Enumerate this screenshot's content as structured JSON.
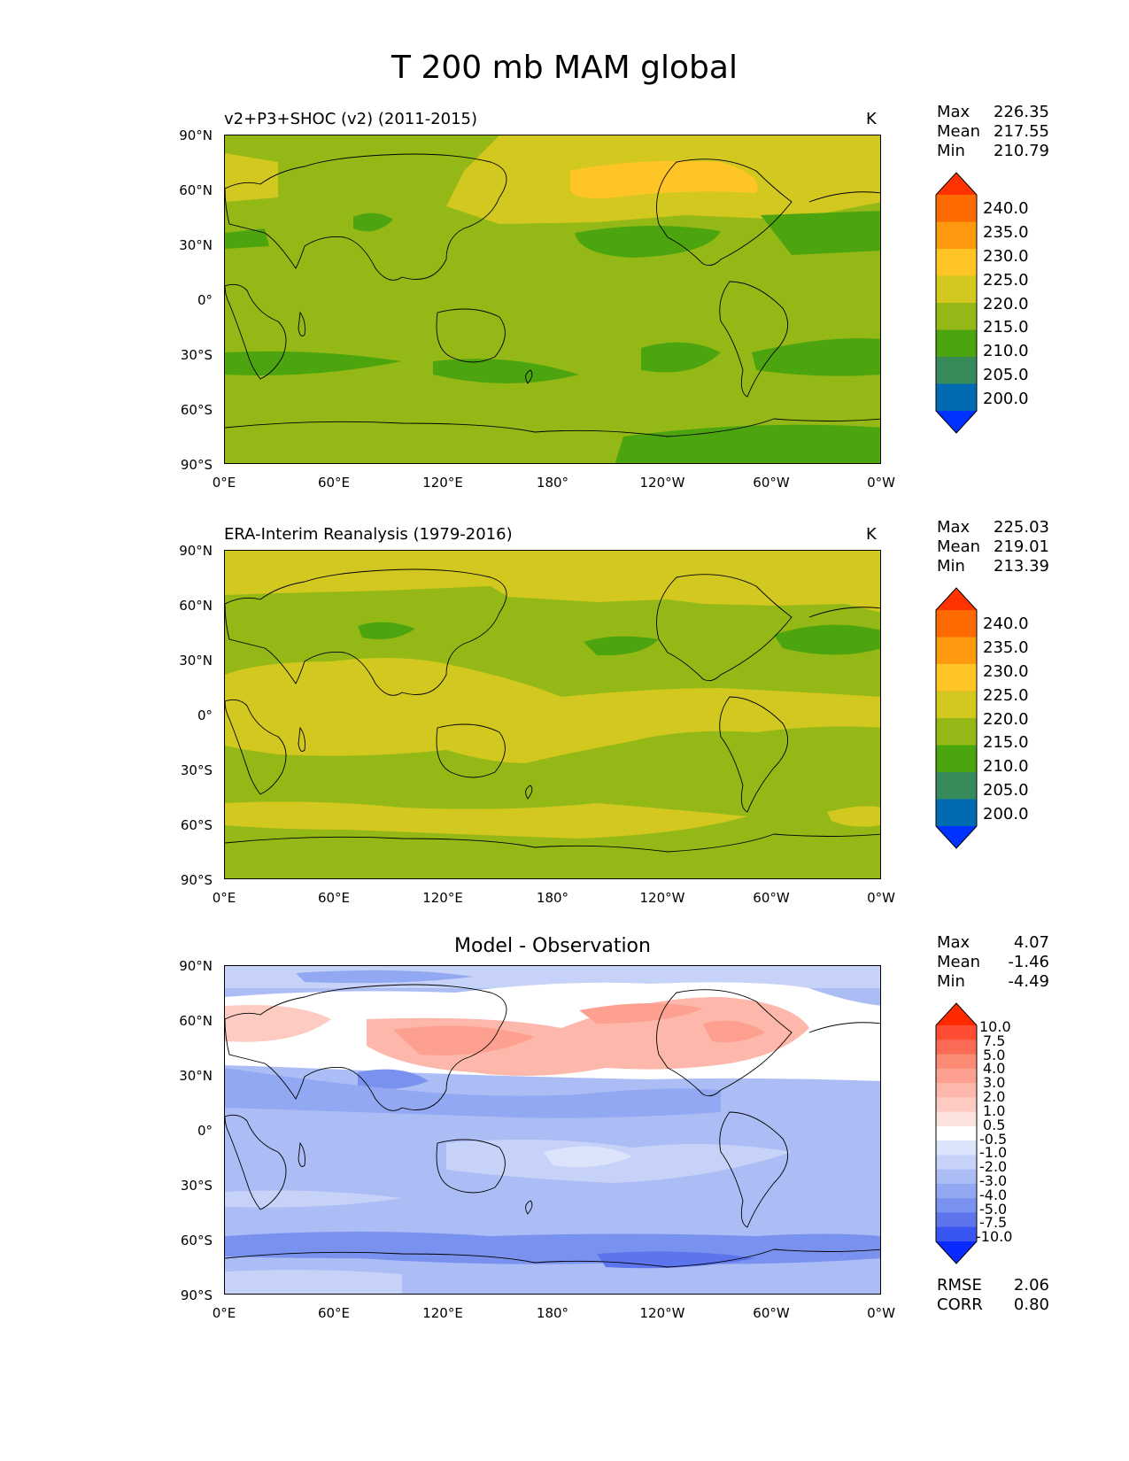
{
  "title": "T 200 mb MAM global",
  "x_ticks": [
    "0°E",
    "60°E",
    "120°E",
    "180°",
    "120°W",
    "60°W",
    "0°W"
  ],
  "y_ticks": [
    "90°N",
    "60°N",
    "30°N",
    "0°",
    "30°S",
    "60°S",
    "90°S"
  ],
  "panels": [
    {
      "id": "model",
      "title": "v2+P3+SHOC (v2) (2011-2015)",
      "units": "K",
      "stats": [
        {
          "label": "Max",
          "value": "226.35"
        },
        {
          "label": "Mean",
          "value": "217.55"
        },
        {
          "label": "Min",
          "value": "210.79"
        }
      ],
      "colorbar": {
        "labels": [
          "240.0",
          "235.0",
          "230.0",
          "225.0",
          "220.0",
          "215.0",
          "210.0",
          "205.0",
          "200.0"
        ],
        "colors": [
          "#ff3300",
          "#ff6a00",
          "#ff9a10",
          "#ffc526",
          "#d2c81f",
          "#94b916",
          "#4ca50f",
          "#378a5a",
          "#006bb0",
          "#0032ff"
        ]
      }
    },
    {
      "id": "obs",
      "title": "ERA-Interim Reanalysis (1979-2016)",
      "units": "K",
      "stats": [
        {
          "label": "Max",
          "value": "225.03"
        },
        {
          "label": "Mean",
          "value": "219.01"
        },
        {
          "label": "Min",
          "value": "213.39"
        }
      ],
      "colorbar": {
        "labels": [
          "240.0",
          "235.0",
          "230.0",
          "225.0",
          "220.0",
          "215.0",
          "210.0",
          "205.0",
          "200.0"
        ],
        "colors": [
          "#ff3300",
          "#ff6a00",
          "#ff9a10",
          "#ffc526",
          "#d2c81f",
          "#94b916",
          "#4ca50f",
          "#378a5a",
          "#006bb0",
          "#0032ff"
        ]
      }
    },
    {
      "id": "diff",
      "title": "Model - Observation",
      "units": "",
      "stats": [
        {
          "label": "Max",
          "value": "4.07"
        },
        {
          "label": "Mean",
          "value": "-1.46"
        },
        {
          "label": "Min",
          "value": "-4.49"
        }
      ],
      "colorbar": {
        "labels": [
          "10.0",
          "7.5",
          "5.0",
          "4.0",
          "3.0",
          "2.0",
          "1.0",
          "0.5",
          "-0.5",
          "-1.0",
          "-2.0",
          "-3.0",
          "-4.0",
          "-5.0",
          "-7.5",
          "-10.0"
        ],
        "colors": [
          "#ff2a00",
          "#ff4d33",
          "#fb6a55",
          "#fa8a74",
          "#fda090",
          "#fdb7ab",
          "#fdcbc2",
          "#fde3de",
          "#ffffff",
          "#dce4fb",
          "#c6d2f8",
          "#acbdf5",
          "#93a8f2",
          "#7a92ef",
          "#5c74ec",
          "#3955f1",
          "#0a2aff"
        ]
      },
      "extra_stats": [
        {
          "label": "RMSE",
          "value": "2.06"
        },
        {
          "label": "CORR",
          "value": "0.80"
        }
      ]
    }
  ]
}
